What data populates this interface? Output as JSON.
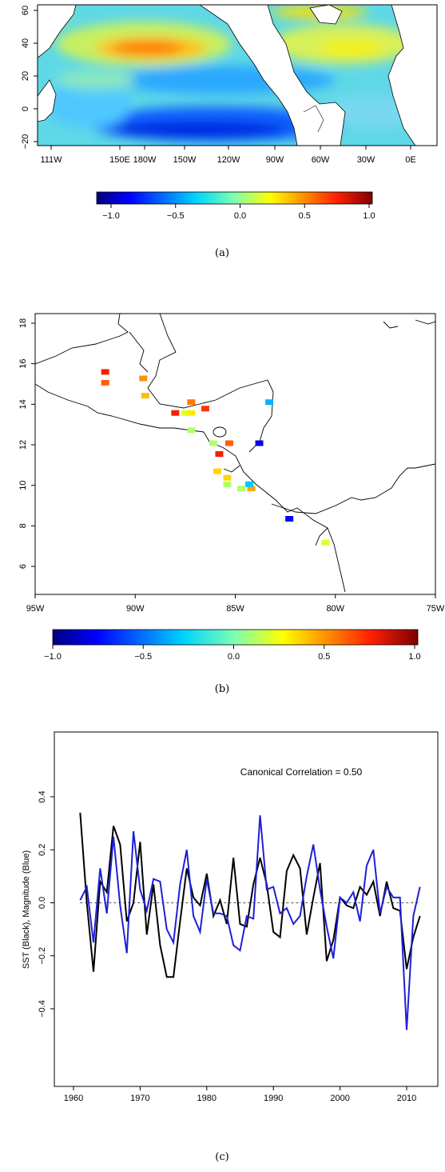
{
  "panel_a": {
    "caption": "(a)",
    "yticks": [
      "-20",
      "0",
      "20",
      "40",
      "60"
    ],
    "xticks": [
      "111W",
      "150E",
      "180W",
      "150W",
      "120W",
      "90W",
      "60W",
      "30W",
      "0E"
    ],
    "colorbar_ticks": [
      "-1.0",
      "-0.5",
      "0.0",
      "0.5",
      "1.0"
    ]
  },
  "panel_b": {
    "caption": "(b)",
    "yticks": [
      "6",
      "8",
      "10",
      "12",
      "14",
      "16",
      "18"
    ],
    "xticks": [
      "95W",
      "90W",
      "85W",
      "80W",
      "75W"
    ],
    "colorbar_ticks": [
      "-1.0",
      "-0.5",
      "0.0",
      "0.5",
      "1.0"
    ]
  },
  "panel_c": {
    "caption": "(c)",
    "annotation": "Canonical Correlation = 0.50",
    "ylabel": "SST (Black), Magnitude (Blue)",
    "yticks": [
      "-0.4",
      "-0.2",
      "0.0",
      "0.2",
      "0.4"
    ],
    "xticks": [
      "1960",
      "1970",
      "1980",
      "1990",
      "2000",
      "2010"
    ]
  },
  "chart_data": [
    {
      "type": "heatmap",
      "title": "",
      "description_source": "panel (a) SST canonical pattern map",
      "x_range": [
        "111W",
        "0E"
      ],
      "y_range": [
        -22,
        62
      ],
      "colorscale_range": [
        -1.0,
        1.0
      ],
      "colors": {
        "low": "#00008b",
        "mid": "#7fffd4",
        "high": "#8b0000"
      }
    },
    {
      "type": "scatter",
      "title": "",
      "xlim": [
        -95,
        -75
      ],
      "ylim": [
        5,
        18
      ],
      "colorscale_range": [
        -1.0,
        1.0
      ],
      "points": [
        {
          "lon": -91.5,
          "lat": 15.3,
          "value": 0.75
        },
        {
          "lon": -91.5,
          "lat": 14.8,
          "value": 0.6
        },
        {
          "lon": -89.6,
          "lat": 15.0,
          "value": 0.5
        },
        {
          "lon": -89.5,
          "lat": 14.2,
          "value": 0.4
        },
        {
          "lon": -88.0,
          "lat": 13.4,
          "value": 0.75
        },
        {
          "lon": -87.5,
          "lat": 13.4,
          "value": 0.2
        },
        {
          "lon": -87.2,
          "lat": 13.4,
          "value": 0.3
        },
        {
          "lon": -87.2,
          "lat": 13.9,
          "value": 0.55
        },
        {
          "lon": -86.5,
          "lat": 13.6,
          "value": 0.7
        },
        {
          "lon": -87.2,
          "lat": 12.6,
          "value": 0.1
        },
        {
          "lon": -86.1,
          "lat": 12.0,
          "value": 0.1
        },
        {
          "lon": -85.3,
          "lat": 12.0,
          "value": 0.6
        },
        {
          "lon": -85.8,
          "lat": 11.5,
          "value": 0.75
        },
        {
          "lon": -85.9,
          "lat": 10.7,
          "value": 0.35
        },
        {
          "lon": -85.4,
          "lat": 10.4,
          "value": 0.35
        },
        {
          "lon": -85.4,
          "lat": 10.1,
          "value": 0.1
        },
        {
          "lon": -84.7,
          "lat": 9.9,
          "value": 0.1
        },
        {
          "lon": -84.2,
          "lat": 9.9,
          "value": 0.45
        },
        {
          "lon": -84.3,
          "lat": 10.1,
          "value": -0.3
        },
        {
          "lon": -83.8,
          "lat": 12.0,
          "value": -0.8
        },
        {
          "lon": -83.3,
          "lat": 13.9,
          "value": -0.35
        },
        {
          "lon": -82.3,
          "lat": 8.5,
          "value": -0.75
        },
        {
          "lon": -80.5,
          "lat": 7.4,
          "value": 0.2
        }
      ]
    },
    {
      "type": "line",
      "title": "Canonical Correlation = 0.50",
      "xlabel": "",
      "ylabel": "SST (Black), Magnitude (Blue)",
      "xlim": [
        1958.5,
        2013.5
      ],
      "ylim": [
        -0.5,
        0.47
      ],
      "reference_line": 0.0,
      "x": [
        1961,
        1962,
        1963,
        1964,
        1965,
        1966,
        1967,
        1968,
        1969,
        1970,
        1971,
        1972,
        1973,
        1974,
        1975,
        1976,
        1977,
        1978,
        1979,
        1980,
        1981,
        1982,
        1983,
        1984,
        1985,
        1986,
        1987,
        1988,
        1989,
        1990,
        1991,
        1992,
        1993,
        1994,
        1995,
        1996,
        1997,
        1998,
        1999,
        2000,
        2001,
        2002,
        2003,
        2004,
        2005,
        2006,
        2007,
        2008,
        2009,
        2010,
        2011,
        2012
      ],
      "series": [
        {
          "color": "#000000",
          "values": [
            0.34,
            0.0,
            -0.26,
            0.08,
            0.04,
            0.29,
            0.22,
            -0.07,
            0.0,
            0.23,
            -0.12,
            0.07,
            -0.16,
            -0.28,
            -0.28,
            -0.07,
            0.13,
            0.02,
            -0.01,
            0.11,
            -0.05,
            0.01,
            -0.08,
            0.17,
            -0.08,
            -0.09,
            0.07,
            0.17,
            0.07,
            -0.11,
            -0.13,
            0.12,
            0.18,
            0.13,
            -0.12,
            0.02,
            0.15,
            -0.22,
            -0.14,
            0.02,
            -0.01,
            -0.02,
            0.06,
            0.03,
            0.08,
            -0.05,
            0.08,
            -0.02,
            -0.03,
            -0.25,
            -0.13,
            -0.05
          ]
        },
        {
          "color": "#1f1fd8",
          "values": [
            0.01,
            0.06,
            -0.15,
            0.13,
            -0.04,
            0.25,
            -0.01,
            -0.19,
            0.27,
            0.05,
            -0.03,
            0.09,
            0.08,
            -0.1,
            -0.15,
            0.07,
            0.2,
            -0.05,
            -0.11,
            0.09,
            -0.04,
            -0.04,
            -0.05,
            -0.16,
            -0.18,
            -0.05,
            -0.06,
            0.33,
            0.05,
            0.06,
            -0.04,
            -0.02,
            -0.08,
            -0.05,
            0.1,
            0.22,
            0.05,
            -0.09,
            -0.21,
            0.02,
            0.0,
            0.04,
            -0.07,
            0.14,
            0.2,
            -0.04,
            0.06,
            0.02,
            0.02,
            -0.48,
            -0.05,
            0.06
          ]
        }
      ]
    }
  ]
}
